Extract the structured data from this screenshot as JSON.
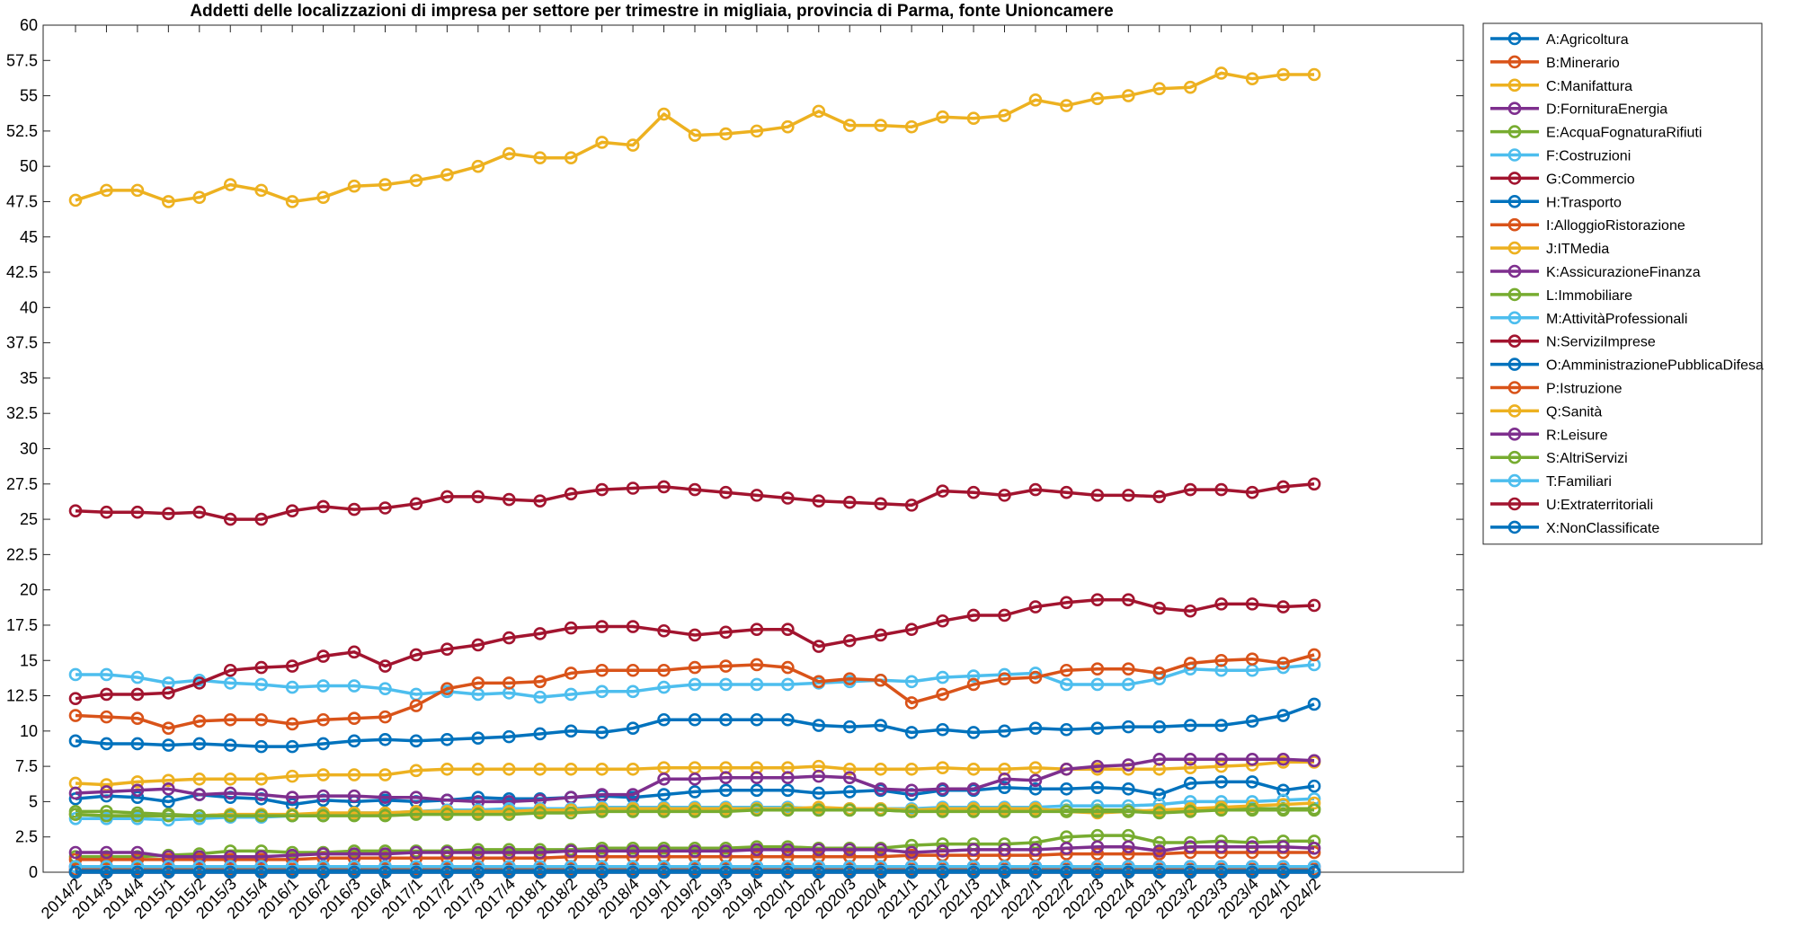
{
  "chart_data": {
    "type": "line",
    "title": "Addetti delle localizzazioni di impresa per settore per trimestre in migliaia, provincia di Parma, fonte Unioncamere",
    "xlabel": "",
    "ylabel": "",
    "ylim": [
      0,
      60
    ],
    "ytick_step": 2.5,
    "grid": false,
    "legend_position": "outside-top-right",
    "categories": [
      "2014/2",
      "2014/3",
      "2014/4",
      "2015/1",
      "2015/2",
      "2015/3",
      "2015/4",
      "2016/1",
      "2016/2",
      "2016/3",
      "2016/4",
      "2017/1",
      "2017/2",
      "2017/3",
      "2017/4",
      "2018/1",
      "2018/2",
      "2018/3",
      "2018/4",
      "2019/1",
      "2019/2",
      "2019/3",
      "2019/4",
      "2020/1",
      "2020/2",
      "2020/3",
      "2020/4",
      "2021/1",
      "2021/2",
      "2021/3",
      "2021/4",
      "2022/1",
      "2022/2",
      "2022/3",
      "2022/4",
      "2023/1",
      "2023/2",
      "2023/3",
      "2023/4",
      "2024/1",
      "2024/2"
    ],
    "series": [
      {
        "name": "A:Agricoltura",
        "color": "#0072BD",
        "values": [
          5.2,
          5.4,
          5.3,
          5.0,
          5.5,
          5.3,
          5.2,
          4.8,
          5.1,
          5.0,
          5.1,
          5.0,
          5.1,
          5.3,
          5.2,
          5.2,
          5.3,
          5.4,
          5.3,
          5.5,
          5.7,
          5.8,
          5.8,
          5.8,
          5.6,
          5.7,
          5.8,
          5.5,
          5.8,
          5.8,
          6.0,
          5.9,
          5.9,
          6.0,
          5.9,
          5.5,
          6.3,
          6.4,
          6.4,
          5.8,
          6.1
        ]
      },
      {
        "name": "B:Minerario",
        "color": "#D95319",
        "values": [
          0.2,
          0.2,
          0.2,
          0.2,
          0.2,
          0.2,
          0.2,
          0.2,
          0.2,
          0.2,
          0.2,
          0.2,
          0.2,
          0.2,
          0.2,
          0.2,
          0.2,
          0.2,
          0.2,
          0.2,
          0.2,
          0.2,
          0.2,
          0.2,
          0.2,
          0.2,
          0.2,
          0.2,
          0.2,
          0.2,
          0.2,
          0.2,
          0.2,
          0.2,
          0.2,
          0.2,
          0.2,
          0.2,
          0.2,
          0.2,
          0.2
        ]
      },
      {
        "name": "C:Manifattura",
        "color": "#EDB120",
        "values": [
          47.6,
          48.3,
          48.3,
          47.5,
          47.8,
          48.7,
          48.3,
          47.5,
          47.8,
          48.6,
          48.7,
          49.0,
          49.4,
          50.0,
          50.9,
          50.6,
          50.6,
          51.7,
          51.5,
          53.7,
          52.2,
          52.3,
          52.5,
          52.8,
          53.9,
          52.9,
          52.9,
          52.8,
          53.5,
          53.4,
          53.6,
          54.7,
          54.3,
          54.8,
          55.0,
          55.5,
          55.6,
          56.6,
          56.2,
          56.5,
          56.5
        ]
      },
      {
        "name": "D:FornituraEnergia",
        "color": "#7E2F8E",
        "values": [
          0.4,
          0.4,
          0.4,
          0.4,
          0.4,
          0.4,
          0.4,
          0.4,
          0.4,
          0.4,
          0.4,
          0.4,
          0.4,
          0.4,
          0.4,
          0.4,
          0.4,
          0.4,
          0.4,
          0.4,
          0.4,
          0.4,
          0.4,
          0.4,
          0.4,
          0.4,
          0.4,
          0.4,
          0.4,
          0.4,
          0.4,
          0.4,
          0.4,
          0.4,
          0.4,
          0.4,
          0.4,
          0.4,
          0.4,
          0.4,
          0.4
        ]
      },
      {
        "name": "E:AcquaFognaturaRifiuti",
        "color": "#77AC30",
        "values": [
          1.1,
          1.1,
          1.1,
          1.2,
          1.3,
          1.5,
          1.5,
          1.4,
          1.4,
          1.5,
          1.5,
          1.5,
          1.5,
          1.6,
          1.6,
          1.6,
          1.6,
          1.7,
          1.7,
          1.7,
          1.7,
          1.7,
          1.8,
          1.8,
          1.7,
          1.7,
          1.7,
          1.9,
          2.0,
          2.0,
          2.0,
          2.1,
          2.5,
          2.6,
          2.6,
          2.1,
          2.1,
          2.2,
          2.1,
          2.2,
          2.2
        ]
      },
      {
        "name": "F:Costruzioni",
        "color": "#4DBEEE",
        "values": [
          14.0,
          14.0,
          13.8,
          13.4,
          13.6,
          13.4,
          13.3,
          13.1,
          13.2,
          13.2,
          13.0,
          12.6,
          12.8,
          12.6,
          12.7,
          12.4,
          12.6,
          12.8,
          12.8,
          13.1,
          13.3,
          13.3,
          13.3,
          13.3,
          13.4,
          13.5,
          13.6,
          13.5,
          13.8,
          13.9,
          14.0,
          14.1,
          13.3,
          13.3,
          13.3,
          13.7,
          14.4,
          14.3,
          14.3,
          14.5,
          14.7
        ]
      },
      {
        "name": "G:Commercio",
        "color": "#A2142F",
        "values": [
          25.6,
          25.5,
          25.5,
          25.4,
          25.5,
          25.0,
          25.0,
          25.6,
          25.9,
          25.7,
          25.8,
          26.1,
          26.6,
          26.6,
          26.4,
          26.3,
          26.8,
          27.1,
          27.2,
          27.3,
          27.1,
          26.9,
          26.7,
          26.5,
          26.3,
          26.2,
          26.1,
          26.0,
          27.0,
          26.9,
          26.7,
          27.1,
          26.9,
          26.7,
          26.7,
          26.6,
          27.1,
          27.1,
          26.9,
          27.3,
          27.5
        ]
      },
      {
        "name": "H:Trasporto",
        "color": "#0072BD",
        "values": [
          9.3,
          9.1,
          9.1,
          9.0,
          9.1,
          9.0,
          8.9,
          8.9,
          9.1,
          9.3,
          9.4,
          9.3,
          9.4,
          9.5,
          9.6,
          9.8,
          10.0,
          9.9,
          10.2,
          10.8,
          10.8,
          10.8,
          10.8,
          10.8,
          10.4,
          10.3,
          10.4,
          9.9,
          10.1,
          9.9,
          10.0,
          10.2,
          10.1,
          10.2,
          10.3,
          10.3,
          10.4,
          10.4,
          10.7,
          11.1,
          11.9
        ]
      },
      {
        "name": "I:AlloggioRistorazione",
        "color": "#D95319",
        "values": [
          11.1,
          11.0,
          10.9,
          10.2,
          10.7,
          10.8,
          10.8,
          10.5,
          10.8,
          10.9,
          11.0,
          11.8,
          13.0,
          13.4,
          13.4,
          13.5,
          14.1,
          14.3,
          14.3,
          14.3,
          14.5,
          14.6,
          14.7,
          14.5,
          13.5,
          13.7,
          13.6,
          12.0,
          12.6,
          13.3,
          13.7,
          13.8,
          14.3,
          14.4,
          14.4,
          14.1,
          14.8,
          15.0,
          15.1,
          14.8,
          15.4
        ]
      },
      {
        "name": "J:ITMedia",
        "color": "#EDB120",
        "values": [
          6.3,
          6.2,
          6.4,
          6.5,
          6.6,
          6.6,
          6.6,
          6.8,
          6.9,
          6.9,
          6.9,
          7.2,
          7.3,
          7.3,
          7.3,
          7.3,
          7.3,
          7.3,
          7.3,
          7.4,
          7.4,
          7.4,
          7.4,
          7.4,
          7.5,
          7.3,
          7.3,
          7.3,
          7.4,
          7.3,
          7.3,
          7.4,
          7.3,
          7.3,
          7.3,
          7.3,
          7.4,
          7.5,
          7.6,
          7.8,
          7.8
        ]
      },
      {
        "name": "K:AssicurazioneFinanza",
        "color": "#7E2F8E",
        "values": [
          5.6,
          5.7,
          5.8,
          5.9,
          5.5,
          5.6,
          5.5,
          5.3,
          5.4,
          5.4,
          5.3,
          5.3,
          5.1,
          5.0,
          5.0,
          5.1,
          5.3,
          5.5,
          5.5,
          6.6,
          6.6,
          6.7,
          6.7,
          6.7,
          6.8,
          6.7,
          5.9,
          5.8,
          5.9,
          5.9,
          6.6,
          6.5,
          7.3,
          7.5,
          7.6,
          8.0,
          8.0,
          8.0,
          8.0,
          8.0,
          7.9
        ]
      },
      {
        "name": "L:Immobiliare",
        "color": "#77AC30",
        "values": [
          4.3,
          4.3,
          4.2,
          4.1,
          4.0,
          4.1,
          4.0,
          4.0,
          4.0,
          4.1,
          4.1,
          4.2,
          4.2,
          4.2,
          4.3,
          4.3,
          4.4,
          4.4,
          4.4,
          4.4,
          4.4,
          4.4,
          4.5,
          4.5,
          4.4,
          4.4,
          4.4,
          4.3,
          4.4,
          4.4,
          4.4,
          4.4,
          4.4,
          4.4,
          4.4,
          4.3,
          4.4,
          4.5,
          4.5,
          4.5,
          4.5
        ]
      },
      {
        "name": "M:AttivitàProfessionali",
        "color": "#4DBEEE",
        "values": [
          3.8,
          3.8,
          3.8,
          3.7,
          3.8,
          3.9,
          3.9,
          4.0,
          4.1,
          4.2,
          4.2,
          4.3,
          4.4,
          4.4,
          4.5,
          4.5,
          4.5,
          4.6,
          4.6,
          4.6,
          4.6,
          4.6,
          4.6,
          4.6,
          4.5,
          4.5,
          4.5,
          4.5,
          4.6,
          4.6,
          4.6,
          4.6,
          4.7,
          4.7,
          4.7,
          4.8,
          5.0,
          5.0,
          5.0,
          5.1,
          5.2
        ]
      },
      {
        "name": "N:ServiziImprese",
        "color": "#A2142F",
        "values": [
          12.3,
          12.6,
          12.6,
          12.7,
          13.4,
          14.3,
          14.5,
          14.6,
          15.3,
          15.6,
          14.6,
          15.4,
          15.8,
          16.1,
          16.6,
          16.9,
          17.3,
          17.4,
          17.4,
          17.1,
          16.8,
          17.0,
          17.2,
          17.2,
          16.0,
          16.4,
          16.8,
          17.2,
          17.8,
          18.2,
          18.2,
          18.8,
          19.1,
          19.3,
          19.3,
          18.7,
          18.5,
          19.0,
          19.0,
          18.8,
          18.9
        ]
      },
      {
        "name": "O:AmministrazionePubblicaDifesa",
        "color": "#0072BD",
        "values": [
          0.1,
          0.1,
          0.1,
          0.1,
          0.1,
          0.1,
          0.1,
          0.1,
          0.1,
          0.1,
          0.1,
          0.1,
          0.1,
          0.1,
          0.1,
          0.1,
          0.1,
          0.1,
          0.1,
          0.1,
          0.1,
          0.1,
          0.1,
          0.1,
          0.1,
          0.1,
          0.1,
          0.1,
          0.1,
          0.1,
          0.1,
          0.1,
          0.1,
          0.1,
          0.1,
          0.1,
          0.1,
          0.1,
          0.1,
          0.1,
          0.1
        ]
      },
      {
        "name": "P:Istruzione",
        "color": "#D95319",
        "values": [
          0.9,
          0.9,
          0.9,
          0.9,
          0.9,
          0.9,
          0.9,
          0.9,
          1.0,
          1.0,
          1.0,
          1.0,
          1.0,
          1.0,
          1.0,
          1.0,
          1.1,
          1.1,
          1.1,
          1.1,
          1.1,
          1.1,
          1.1,
          1.1,
          1.1,
          1.1,
          1.1,
          1.2,
          1.2,
          1.2,
          1.2,
          1.2,
          1.3,
          1.3,
          1.3,
          1.3,
          1.4,
          1.4,
          1.4,
          1.4,
          1.4
        ]
      },
      {
        "name": "Q:Sanità",
        "color": "#EDB120",
        "values": [
          4.1,
          4.0,
          4.0,
          4.0,
          4.0,
          4.1,
          4.1,
          4.1,
          4.2,
          4.2,
          4.2,
          4.3,
          4.3,
          4.3,
          4.3,
          4.4,
          4.4,
          4.5,
          4.5,
          4.5,
          4.5,
          4.5,
          4.5,
          4.5,
          4.6,
          4.5,
          4.5,
          4.4,
          4.5,
          4.5,
          4.5,
          4.5,
          4.3,
          4.2,
          4.3,
          4.4,
          4.5,
          4.6,
          4.7,
          4.8,
          4.9
        ]
      },
      {
        "name": "R:Leisure",
        "color": "#7E2F8E",
        "values": [
          1.4,
          1.4,
          1.4,
          1.1,
          1.1,
          1.1,
          1.1,
          1.2,
          1.3,
          1.3,
          1.3,
          1.4,
          1.4,
          1.4,
          1.4,
          1.4,
          1.5,
          1.5,
          1.5,
          1.5,
          1.5,
          1.5,
          1.6,
          1.6,
          1.6,
          1.6,
          1.6,
          1.4,
          1.5,
          1.6,
          1.6,
          1.6,
          1.7,
          1.8,
          1.8,
          1.5,
          1.8,
          1.8,
          1.8,
          1.8,
          1.7
        ]
      },
      {
        "name": "S:AltriServizi",
        "color": "#77AC30",
        "values": [
          4.1,
          4.0,
          4.0,
          4.0,
          4.0,
          4.0,
          4.0,
          4.0,
          4.0,
          4.0,
          4.0,
          4.1,
          4.1,
          4.1,
          4.1,
          4.2,
          4.2,
          4.3,
          4.3,
          4.3,
          4.3,
          4.3,
          4.4,
          4.4,
          4.4,
          4.4,
          4.4,
          4.3,
          4.3,
          4.3,
          4.3,
          4.3,
          4.3,
          4.3,
          4.3,
          4.2,
          4.3,
          4.4,
          4.4,
          4.4,
          4.4
        ]
      },
      {
        "name": "T:Familiari",
        "color": "#4DBEEE",
        "values": [
          0.4,
          0.4,
          0.4,
          0.4,
          0.4,
          0.4,
          0.4,
          0.4,
          0.4,
          0.4,
          0.4,
          0.4,
          0.4,
          0.4,
          0.4,
          0.4,
          0.4,
          0.4,
          0.4,
          0.4,
          0.4,
          0.4,
          0.4,
          0.4,
          0.4,
          0.4,
          0.4,
          0.4,
          0.4,
          0.4,
          0.4,
          0.4,
          0.4,
          0.4,
          0.4,
          0.4,
          0.4,
          0.4,
          0.4,
          0.4,
          0.4
        ]
      },
      {
        "name": "U:Extraterritoriali",
        "color": "#A2142F",
        "values": [
          0.0,
          0.0,
          0.0,
          0.0,
          0.0,
          0.0,
          0.0,
          0.0,
          0.0,
          0.0,
          0.0,
          0.0,
          0.0,
          0.0,
          0.0,
          0.0,
          0.0,
          0.0,
          0.0,
          0.0,
          0.0,
          0.0,
          0.0,
          0.0,
          0.0,
          0.0,
          0.0,
          0.0,
          0.0,
          0.0,
          0.0,
          0.0,
          0.0,
          0.0,
          0.0,
          0.0,
          0.0,
          0.0,
          0.0,
          0.0,
          0.0
        ]
      },
      {
        "name": "X:NonClassificate",
        "color": "#0072BD",
        "values": [
          0.0,
          0.0,
          0.0,
          0.0,
          0.0,
          0.0,
          0.0,
          0.0,
          0.0,
          0.0,
          0.0,
          0.0,
          0.0,
          0.0,
          0.0,
          0.0,
          0.0,
          0.0,
          0.0,
          0.0,
          0.0,
          0.0,
          0.0,
          0.0,
          0.0,
          0.0,
          0.0,
          0.0,
          0.0,
          0.0,
          0.0,
          0.0,
          0.0,
          0.0,
          0.0,
          0.0,
          0.0,
          0.0,
          0.0,
          0.0,
          0.0
        ]
      }
    ]
  }
}
